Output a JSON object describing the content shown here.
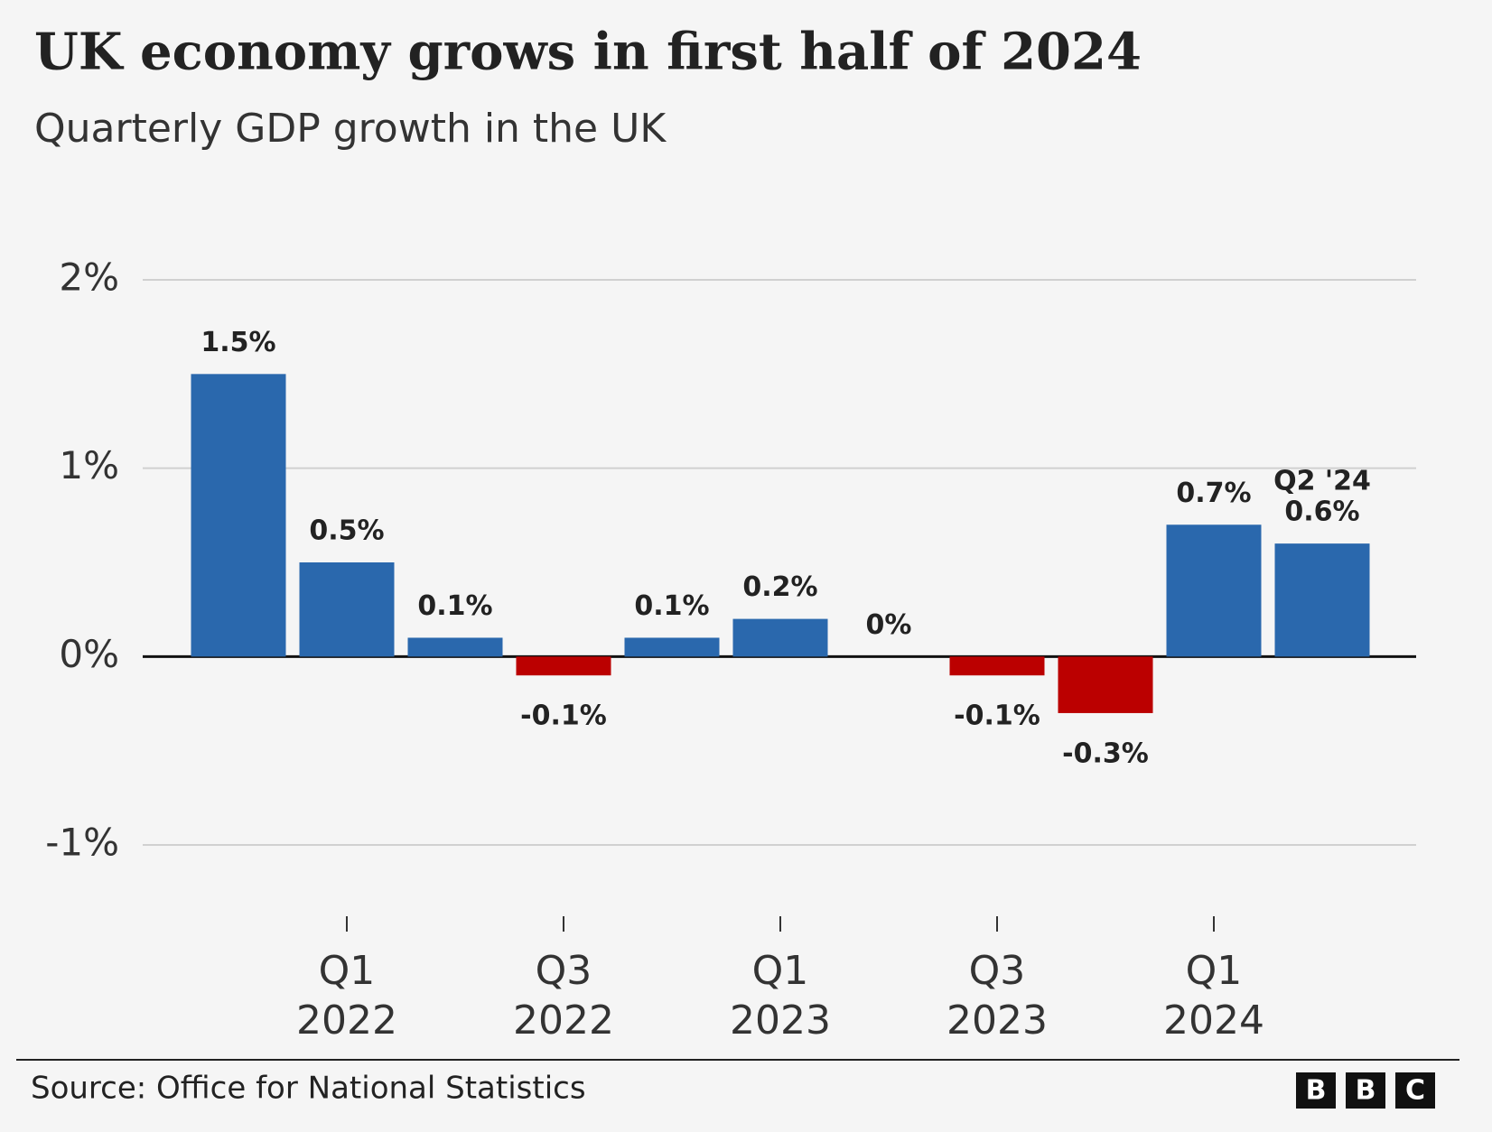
{
  "chart_data": {
    "type": "bar",
    "title": "UK economy grows in first half of 2024",
    "subtitle": "Quarterly GDP growth in the UK",
    "categories": [
      null,
      [
        "Q1",
        "2022"
      ],
      null,
      [
        "Q3",
        "2022"
      ],
      null,
      [
        "Q1",
        "2023"
      ],
      null,
      [
        "Q3",
        "2023"
      ],
      null,
      [
        "Q1",
        "2024"
      ],
      null
    ],
    "values": [
      1.5,
      0.5,
      0.1,
      -0.1,
      0.1,
      0.2,
      0,
      -0.1,
      -0.3,
      0.7,
      0.6
    ],
    "value_labels": [
      "1.5%",
      "0.5%",
      "0.1%",
      "-0.1%",
      "0.1%",
      "0.2%",
      "0%",
      "-0.1%",
      "-0.3%",
      "0.7%",
      "0.6%"
    ],
    "colors": [
      "#2a68ad",
      "#2a68ad",
      "#2a68ad",
      "#bb0000",
      "#2a68ad",
      "#2a68ad",
      "#2a68ad",
      "#bb0000",
      "#bb0000",
      "#2a68ad",
      "#2a68ad"
    ],
    "annotation": "Q2 '24",
    "ylim": [
      -1,
      2
    ],
    "yticks": [
      {
        "value": -1,
        "label": "-1%"
      },
      {
        "value": 0,
        "label": "0%"
      },
      {
        "value": 1,
        "label": "1%"
      },
      {
        "value": 2,
        "label": "2%"
      }
    ],
    "grid": true,
    "source": "Source: Office for National Statistics",
    "logo": [
      "B",
      "B",
      "C"
    ]
  }
}
